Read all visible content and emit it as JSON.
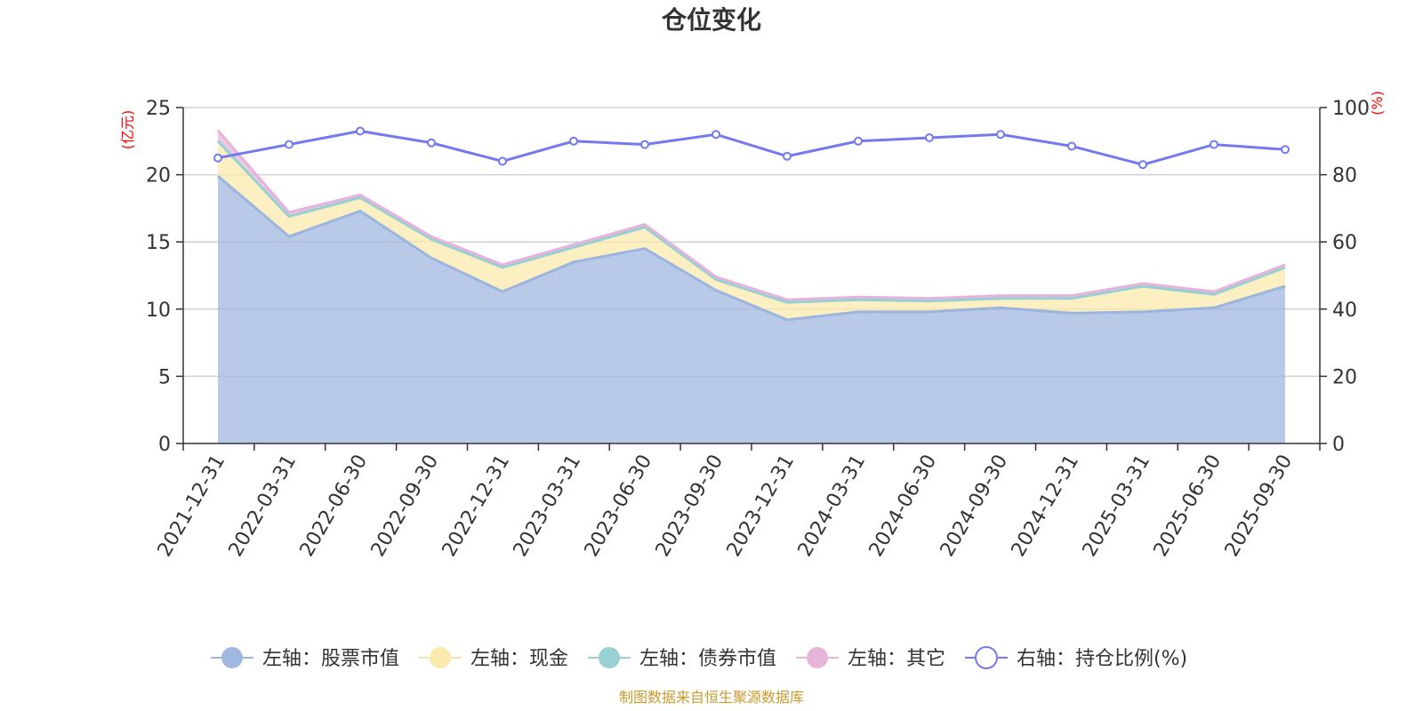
{
  "chart_data": {
    "type": "area",
    "title": "仓位变化",
    "left_axis": {
      "unit": "(亿元)",
      "ylim": [
        0,
        25
      ],
      "ticks": [
        "0",
        "5",
        "10",
        "15",
        "20",
        "25"
      ]
    },
    "right_axis": {
      "unit": "(%)",
      "ylim": [
        0,
        100
      ],
      "ticks": [
        "0",
        "20",
        "40",
        "60",
        "80",
        "100"
      ]
    },
    "categories": [
      "2021-12-31",
      "2022-03-31",
      "2022-06-30",
      "2022-09-30",
      "2022-12-31",
      "2023-03-31",
      "2023-06-30",
      "2023-09-30",
      "2023-12-31",
      "2024-03-31",
      "2024-06-30",
      "2024-09-30",
      "2024-12-31",
      "2025-03-31",
      "2025-06-30",
      "2025-09-30"
    ],
    "series": [
      {
        "name": "左轴：股票市值",
        "axis": "left",
        "kind": "stacked-area",
        "color": "#a0b8e0",
        "line_color": "#9bb5df",
        "values": [
          19.9,
          15.4,
          17.3,
          13.8,
          11.3,
          13.5,
          14.5,
          11.4,
          9.2,
          9.8,
          9.8,
          10.1,
          9.7,
          9.8,
          10.1,
          11.7
        ]
      },
      {
        "name": "左轴：现金",
        "axis": "left",
        "kind": "stacked-area",
        "color": "#fbe9ad",
        "line_color": "#f8e4a2",
        "values": [
          2.6,
          1.5,
          1.0,
          1.4,
          1.8,
          1.1,
          1.6,
          0.8,
          1.3,
          0.9,
          0.8,
          0.7,
          1.1,
          1.9,
          1.0,
          1.4
        ]
      },
      {
        "name": "左轴：债券市值",
        "axis": "left",
        "kind": "stacked-area",
        "color": "#97d1d3",
        "line_color": "#95d1d4",
        "values": [
          0,
          0,
          0,
          0,
          0,
          0,
          0,
          0,
          0,
          0,
          0,
          0,
          0,
          0,
          0,
          0
        ]
      },
      {
        "name": "左轴：其它",
        "axis": "left",
        "kind": "stacked-area",
        "color": "#e6b5d8",
        "line_color": "#e6b3dc",
        "values": [
          0.8,
          0.3,
          0.2,
          0.2,
          0.2,
          0.2,
          0.2,
          0.2,
          0.2,
          0.2,
          0.2,
          0.2,
          0.2,
          0.2,
          0.2,
          0.2
        ]
      },
      {
        "name": "右轴：持仓比例(%)",
        "axis": "right",
        "kind": "line",
        "color": "#7479ef",
        "values": [
          85.0,
          89.0,
          93.0,
          89.5,
          84.0,
          90.0,
          89.0,
          92.0,
          85.5,
          90.0,
          91.0,
          92.0,
          88.5,
          83.0,
          89.0,
          87.5
        ]
      }
    ],
    "legend_position": "bottom",
    "grid": true
  },
  "footer": {
    "source": "制图数据来自恒生聚源数据库"
  },
  "colors": {
    "text": "#333333",
    "axis": "#333333",
    "grid": "#d0d0d0",
    "unit": "#ff0000",
    "source": "#c89b2d"
  }
}
